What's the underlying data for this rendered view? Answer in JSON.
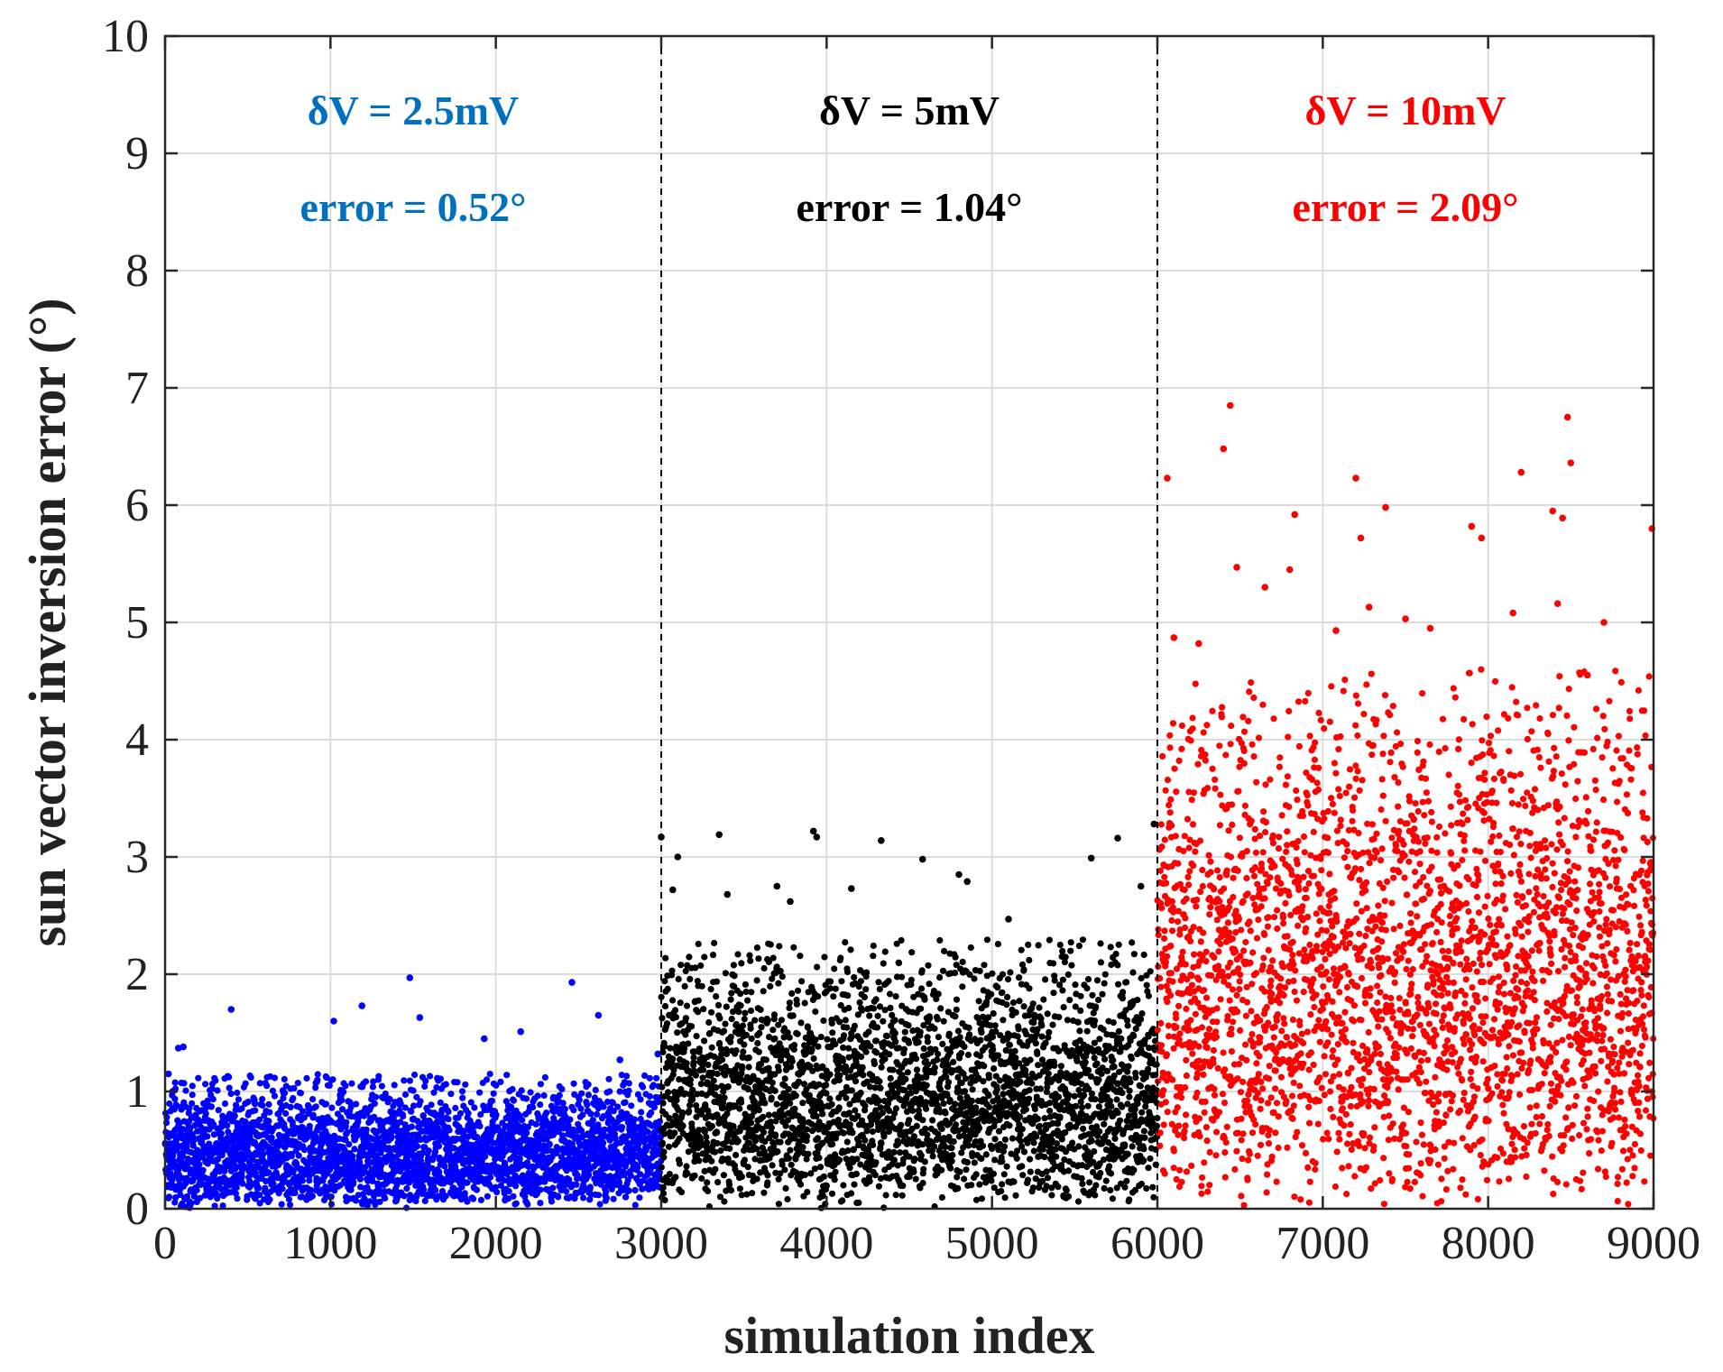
{
  "chart_data": {
    "type": "scatter",
    "xlabel": "simulation index",
    "ylabel": "sun vector inversion error (°)",
    "xlim": [
      0,
      9000
    ],
    "ylim": [
      0,
      10
    ],
    "x_ticks": [
      "0",
      "1000",
      "2000",
      "3000",
      "4000",
      "5000",
      "6000",
      "7000",
      "8000",
      "9000"
    ],
    "y_ticks": [
      "0",
      "1",
      "2",
      "3",
      "4",
      "5",
      "6",
      "7",
      "8",
      "9",
      "10"
    ],
    "grid": true,
    "dividers_x": [
      3000,
      6000
    ],
    "groups": [
      {
        "x_range": [
          0,
          3000
        ],
        "color": "#0000ff",
        "label_color": "#0070c0",
        "label_line1": "δV = 2.5mV",
        "label_line2": "error = 0.52°",
        "mean_error": 0.52,
        "typical_max": 1.0,
        "outliers": [
          [
            20,
            1.15
          ],
          [
            80,
            1.37
          ],
          [
            110,
            1.38
          ],
          [
            400,
            1.7
          ],
          [
            1020,
            1.6
          ],
          [
            1190,
            1.73
          ],
          [
            1480,
            1.97
          ],
          [
            1540,
            1.63
          ],
          [
            1930,
            1.45
          ],
          [
            2150,
            1.51
          ],
          [
            2460,
            1.93
          ],
          [
            2620,
            1.65
          ],
          [
            2750,
            1.27
          ],
          [
            2980,
            1.32
          ]
        ]
      },
      {
        "x_range": [
          3000,
          6000
        ],
        "color": "#000000",
        "label_color": "#000000",
        "label_line1": "δV = 5mV",
        "label_line2": "error = 1.04°",
        "mean_error": 1.04,
        "typical_max": 2.0,
        "outliers": [
          [
            3000,
            3.17
          ],
          [
            3070,
            2.72
          ],
          [
            3100,
            3.0
          ],
          [
            3350,
            3.19
          ],
          [
            3400,
            2.68
          ],
          [
            3700,
            2.75
          ],
          [
            3780,
            2.62
          ],
          [
            3920,
            3.22
          ],
          [
            3940,
            3.17
          ],
          [
            4150,
            2.73
          ],
          [
            4330,
            3.14
          ],
          [
            4580,
            2.98
          ],
          [
            4800,
            2.85
          ],
          [
            4850,
            2.79
          ],
          [
            5100,
            2.47
          ],
          [
            5600,
            2.99
          ],
          [
            5760,
            3.16
          ],
          [
            5900,
            2.75
          ],
          [
            5980,
            3.28
          ]
        ]
      },
      {
        "x_range": [
          6000,
          9000
        ],
        "color": "#ff0000",
        "label_color": "#ff0000",
        "label_line1": "δV = 10mV",
        "label_line2": "error = 2.09°",
        "mean_error": 2.09,
        "typical_max": 4.0,
        "outliers": [
          [
            6060,
            6.23
          ],
          [
            6100,
            4.87
          ],
          [
            6400,
            6.48
          ],
          [
            6440,
            6.85
          ],
          [
            6480,
            5.47
          ],
          [
            6650,
            5.3
          ],
          [
            6830,
            5.92
          ],
          [
            6800,
            5.45
          ],
          [
            7080,
            4.93
          ],
          [
            7200,
            6.23
          ],
          [
            7230,
            5.72
          ],
          [
            7280,
            5.13
          ],
          [
            7380,
            5.98
          ],
          [
            7900,
            5.82
          ],
          [
            7960,
            5.72
          ],
          [
            8150,
            5.08
          ],
          [
            8200,
            6.28
          ],
          [
            8390,
            5.95
          ],
          [
            8450,
            5.89
          ],
          [
            8420,
            5.16
          ],
          [
            8480,
            6.75
          ],
          [
            8500,
            6.36
          ],
          [
            8700,
            5.0
          ],
          [
            8990,
            5.8
          ],
          [
            6250,
            4.82
          ],
          [
            7500,
            5.03
          ],
          [
            7650,
            4.95
          ],
          [
            8600,
            4.55
          ]
        ]
      }
    ]
  }
}
